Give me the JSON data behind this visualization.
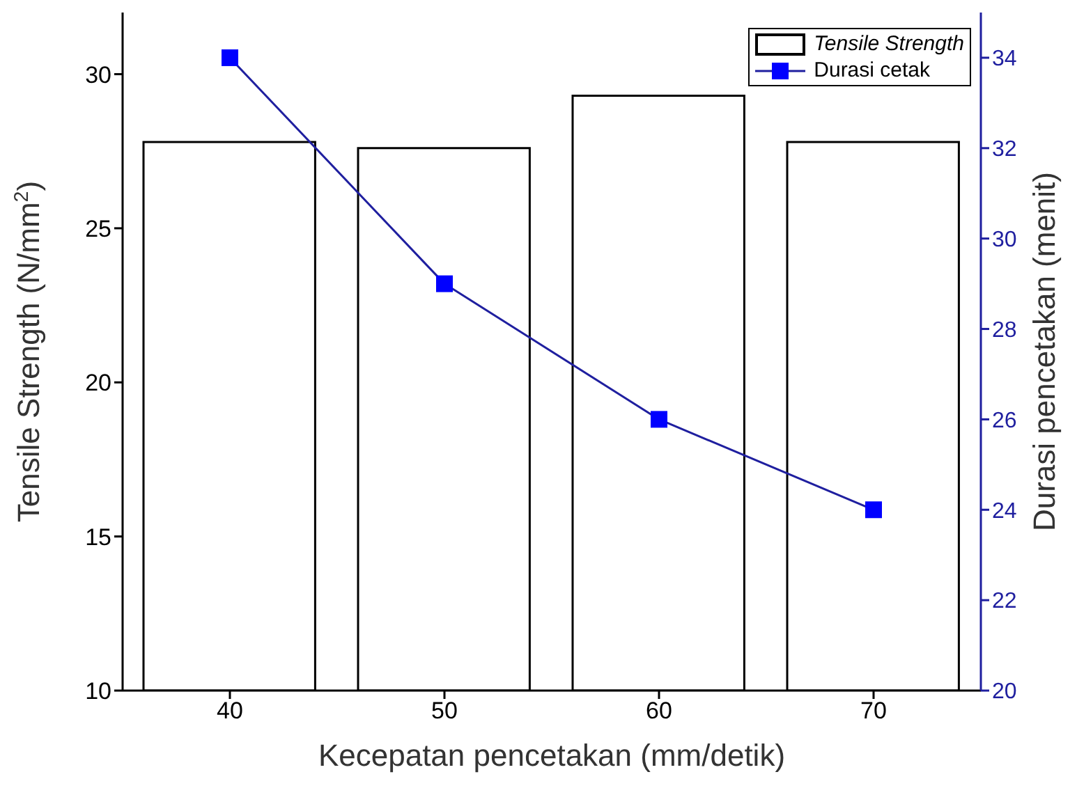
{
  "chart_data": {
    "type": "bar",
    "x": [
      40,
      50,
      60,
      70
    ],
    "xlabel": "Kecepatan pencetakan (mm/detik)",
    "ylabel": "Tensile Strength (N/mm$^{2}$)",
    "y2label": "Durasi pencetakan (menit)",
    "series": [
      {
        "name": "Tensile Strength",
        "color": "#000000",
        "values": [
          27.8,
          27.6,
          29.3,
          27.8
        ]
      },
      {
        "name": "Durasi cetak",
        "type": "line",
        "axis": "y2",
        "color": "#0000ff",
        "values": [
          34,
          29,
          26,
          24
        ]
      }
    ],
    "xlim": [
      35,
      75
    ],
    "xticks": [
      40,
      50,
      60,
      70
    ],
    "ylim": [
      10,
      32
    ],
    "yticks": [
      10,
      15,
      20,
      25,
      30
    ],
    "y2lim": [
      20,
      35
    ],
    "y2ticks": [
      20,
      22,
      24,
      26,
      28,
      30,
      32,
      34
    ],
    "marker": "square",
    "line_style": "solid",
    "legend": "top right",
    "grid": false
  }
}
